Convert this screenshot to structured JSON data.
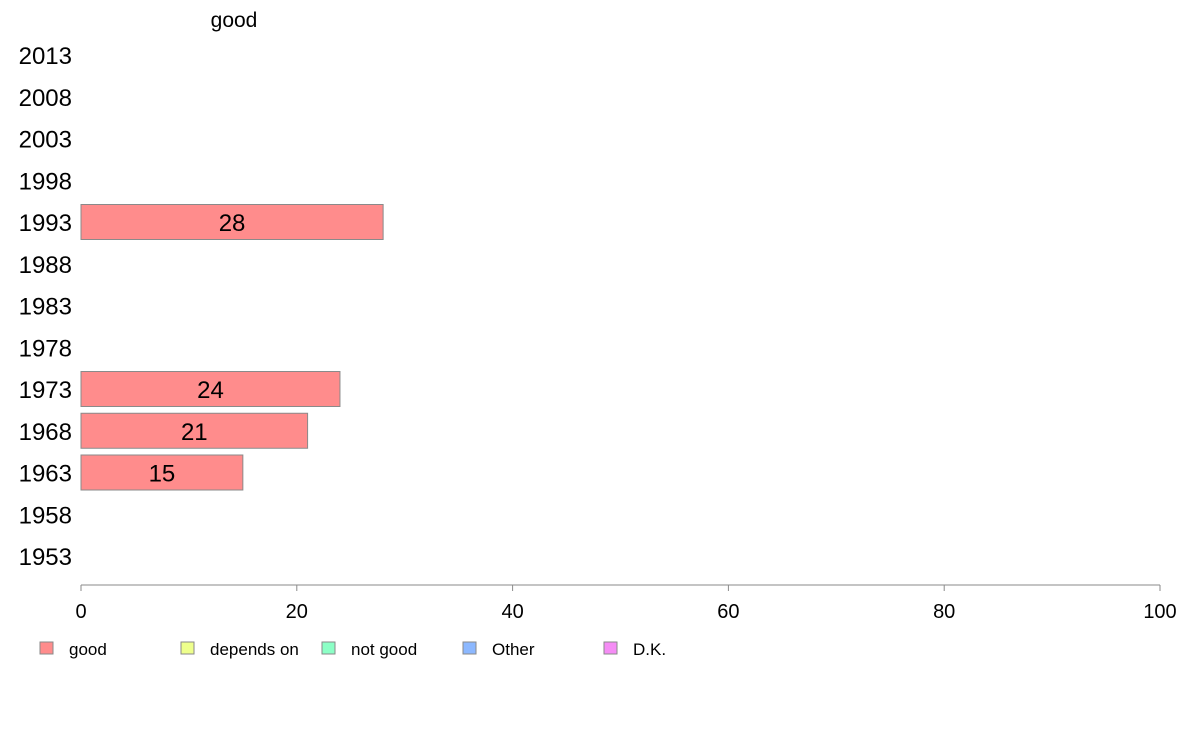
{
  "chart_data": {
    "type": "bar",
    "orientation": "horizontal",
    "title": "good",
    "categories": [
      "2013",
      "2008",
      "2003",
      "1998",
      "1993",
      "1988",
      "1983",
      "1978",
      "1973",
      "1968",
      "1963",
      "1958",
      "1953"
    ],
    "series": [
      {
        "name": "good",
        "values": [
          null,
          null,
          null,
          null,
          28,
          null,
          null,
          null,
          24,
          21,
          15,
          null,
          null
        ],
        "labels": [
          "",
          "",
          "",
          "",
          "28",
          "",
          "",
          "",
          "24",
          "21",
          "15",
          "",
          ""
        ]
      }
    ],
    "xlim": [
      0,
      100
    ],
    "xticks": [
      "0",
      "20",
      "40",
      "60",
      "80",
      "100"
    ],
    "xtick_values": [
      0,
      20,
      40,
      60,
      80,
      100
    ],
    "grid": false,
    "legend_placement": "bottom",
    "legend": [
      {
        "label": "good",
        "color": "#ff8c8c"
      },
      {
        "label": "depends on",
        "color": "#eeff8c"
      },
      {
        "label": "not good",
        "color": "#8cffc6"
      },
      {
        "label": "Other",
        "color": "#8cb8ff"
      },
      {
        "label": "D.K.",
        "color": "#f58cf5"
      }
    ],
    "bar_color": "#ff8c8c"
  }
}
